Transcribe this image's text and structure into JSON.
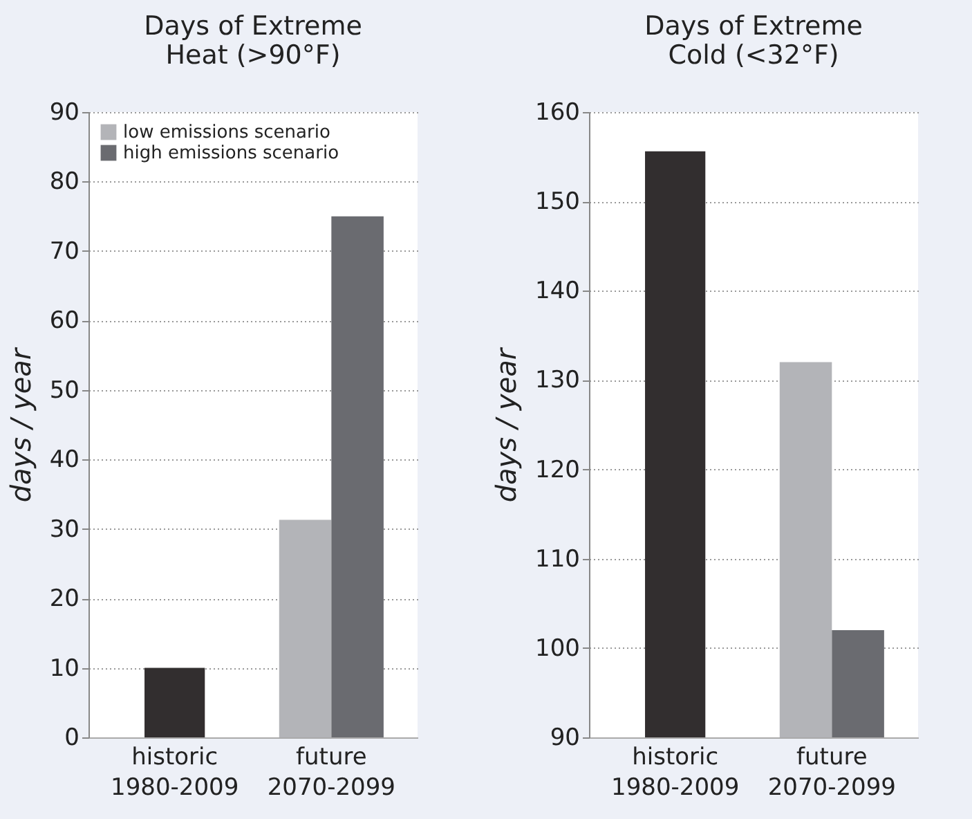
{
  "chart_data": [
    {
      "type": "bar",
      "title": "Days of Extreme\nHeat (>90°F)",
      "ylabel": "days / year",
      "categories": [
        "historic\n1980-2009",
        "future\n2070-2099"
      ],
      "series": [
        {
          "color": "#322e2f",
          "values": [
            10,
            null
          ]
        },
        {
          "name": "low emissions scenario",
          "color": "#b3b4b8",
          "values": [
            null,
            31.3
          ]
        },
        {
          "name": "high emissions scenario",
          "color": "#6a6b70",
          "values": [
            null,
            75
          ]
        }
      ],
      "ylim": [
        0,
        90
      ],
      "yticks": [
        0,
        10,
        20,
        30,
        40,
        50,
        60,
        70,
        80,
        90
      ],
      "grid": "y",
      "legend": "top left"
    },
    {
      "type": "bar",
      "title": "Days of Extreme\nCold (<32°F)",
      "ylabel": "days / year",
      "categories": [
        "historic\n1980-2009",
        "future\n2070-2099"
      ],
      "series": [
        {
          "color": "#322e2f",
          "values": [
            155.6,
            null
          ]
        },
        {
          "color": "#b3b4b8",
          "values": [
            null,
            132
          ]
        },
        {
          "color": "#6a6b70",
          "values": [
            null,
            102
          ]
        }
      ],
      "ylim": [
        90,
        160
      ],
      "yticks": [
        90,
        100,
        110,
        120,
        130,
        140,
        150,
        160
      ],
      "grid": "y"
    }
  ]
}
